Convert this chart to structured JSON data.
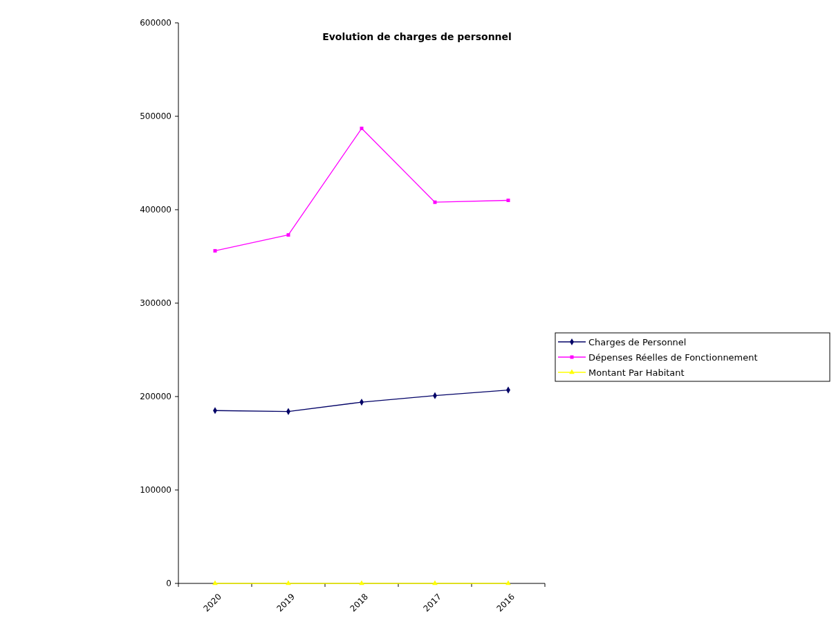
{
  "chart_data": {
    "type": "line",
    "title": "Evolution de charges de personnel",
    "categories": [
      "2020",
      "2019",
      "2018",
      "2017",
      "2016"
    ],
    "series": [
      {
        "name": "Charges de Personnel",
        "color": "#000066",
        "marker": "diamond",
        "values": [
          185000,
          184000,
          194000,
          201000,
          207000
        ]
      },
      {
        "name": "Dépenses Réelles de Fonctionnement",
        "color": "#ff00ff",
        "marker": "square",
        "values": [
          356000,
          373000,
          487000,
          408000,
          410000
        ]
      },
      {
        "name": "Montant Par Habitant",
        "color": "#ffff00",
        "marker": "triangle",
        "values": [
          0,
          0,
          0,
          0,
          0
        ]
      }
    ],
    "ylim": [
      0,
      600000
    ],
    "yticks": [
      0,
      100000,
      200000,
      300000,
      400000,
      500000,
      600000
    ],
    "grid": false,
    "legend": "right",
    "line_style": "solid"
  }
}
